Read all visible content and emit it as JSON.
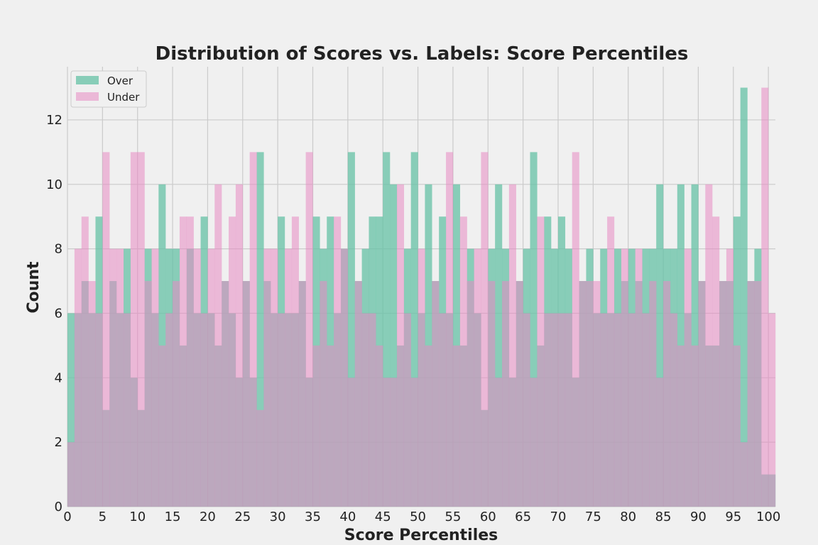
{
  "chart_data": {
    "type": "bar",
    "title": "Distribution of Scores vs. Labels: Score Percentiles",
    "xlabel": "Score Percentiles",
    "ylabel": "Count",
    "xlim": [
      0,
      101
    ],
    "ylim": [
      0,
      13.65
    ],
    "xticks": [
      0,
      5,
      10,
      15,
      20,
      25,
      30,
      35,
      40,
      45,
      50,
      55,
      60,
      65,
      70,
      75,
      80,
      85,
      90,
      95,
      100
    ],
    "yticks": [
      0,
      2,
      4,
      6,
      8,
      10,
      12
    ],
    "grid": true,
    "legend": "top-left",
    "bin_width": 1,
    "series": [
      {
        "name": "Over",
        "color": "#66c2a5",
        "values": [
          6,
          6,
          7,
          6,
          9,
          3,
          7,
          6,
          8,
          4,
          3,
          8,
          6,
          10,
          8,
          8,
          5,
          8,
          6,
          9,
          6,
          5,
          7,
          6,
          4,
          7,
          4,
          11,
          7,
          6,
          9,
          6,
          6,
          7,
          4,
          9,
          8,
          9,
          6,
          8,
          11,
          7,
          8,
          9,
          9,
          11,
          10,
          5,
          8,
          11,
          6,
          10,
          7,
          9,
          6,
          10,
          5,
          8,
          6,
          3,
          8,
          10,
          8,
          4,
          7,
          8,
          11,
          5,
          9,
          8,
          9,
          8,
          4,
          7,
          8,
          6,
          8,
          6,
          8,
          7,
          8,
          7,
          8,
          8,
          10,
          8,
          8,
          10,
          6,
          10,
          7,
          5,
          5,
          7,
          7,
          9,
          13,
          7,
          8,
          1,
          1
        ]
      },
      {
        "name": "Under",
        "color": "#e78ac3",
        "values": [
          2,
          8,
          9,
          7,
          6,
          11,
          8,
          8,
          6,
          11,
          11,
          7,
          8,
          5,
          6,
          7,
          9,
          9,
          8,
          6,
          8,
          10,
          7,
          9,
          10,
          7,
          11,
          3,
          8,
          8,
          6,
          8,
          9,
          7,
          11,
          5,
          7,
          5,
          9,
          8,
          4,
          7,
          6,
          6,
          5,
          4,
          4,
          10,
          6,
          4,
          8,
          5,
          7,
          6,
          11,
          5,
          9,
          7,
          8,
          11,
          7,
          4,
          7,
          10,
          7,
          6,
          4,
          9,
          6,
          6,
          6,
          6,
          11,
          7,
          7,
          7,
          6,
          9,
          6,
          8,
          6,
          8,
          6,
          7,
          4,
          7,
          6,
          5,
          8,
          5,
          7,
          10,
          9,
          7,
          8,
          5,
          2,
          7,
          7,
          13,
          6
        ]
      }
    ]
  }
}
